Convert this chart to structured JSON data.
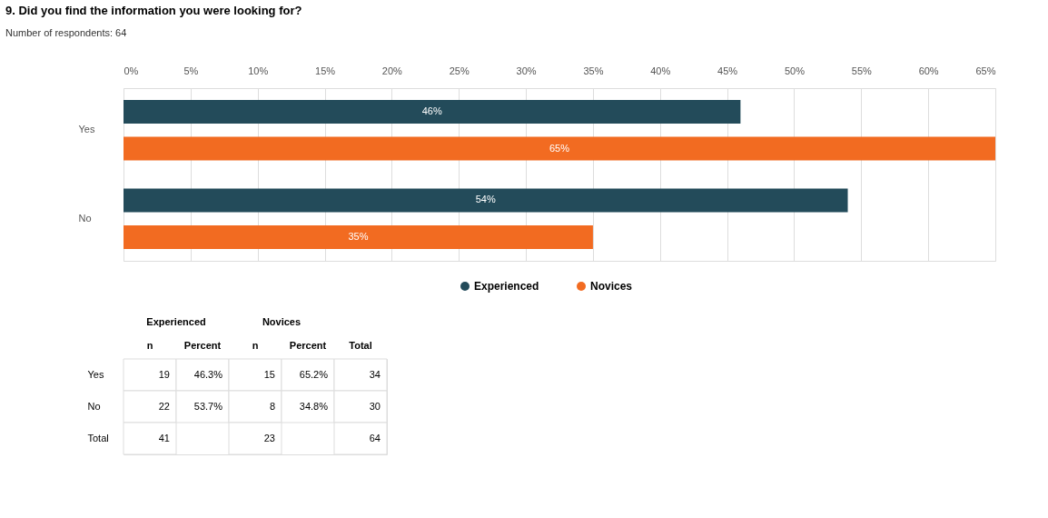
{
  "chart_data": [
    {
      "type": "bar",
      "orientation": "horizontal",
      "title": "9. Did you find the information you were looking for?",
      "subtitle": "Number of respondents: 64",
      "categories": [
        "Yes",
        "No"
      ],
      "series": [
        {
          "name": "Experienced",
          "color": "#234b5a",
          "values": [
            46,
            54
          ],
          "value_labels": [
            "46%",
            "54%"
          ]
        },
        {
          "name": "Novices",
          "color": "#f26b21",
          "values": [
            65,
            35
          ],
          "value_labels": [
            "65%",
            "35%"
          ]
        }
      ],
      "xlim": [
        0,
        65
      ],
      "xticks": [
        {
          "value": 0,
          "label": "0%"
        },
        {
          "value": 5,
          "label": "5%"
        },
        {
          "value": 10,
          "label": "10%"
        },
        {
          "value": 15,
          "label": "15%"
        },
        {
          "value": 20,
          "label": "20%"
        },
        {
          "value": 25,
          "label": "25%"
        },
        {
          "value": 30,
          "label": "30%"
        },
        {
          "value": 35,
          "label": "35%"
        },
        {
          "value": 40,
          "label": "40%"
        },
        {
          "value": 45,
          "label": "45%"
        },
        {
          "value": 50,
          "label": "50%"
        },
        {
          "value": 55,
          "label": "55%"
        },
        {
          "value": 60,
          "label": "60%"
        },
        {
          "value": 65,
          "label": "65%"
        }
      ],
      "grid": "x",
      "legend": "bottom"
    },
    {
      "type": "other",
      "categories": [
        "n",
        "Percent",
        "n",
        "Percent",
        "Total"
      ],
      "y_categories": [
        "Yes",
        "No",
        "Total"
      ],
      "cell_labels": [
        [
          "19",
          "46.3%",
          "15",
          "65.2%",
          "34"
        ],
        [
          "22",
          "53.7%",
          "8",
          "34.8%",
          "30"
        ],
        [
          "41",
          null,
          "23",
          null,
          "64"
        ]
      ],
      "annotations": [
        "Experienced",
        "Novices"
      ]
    }
  ]
}
